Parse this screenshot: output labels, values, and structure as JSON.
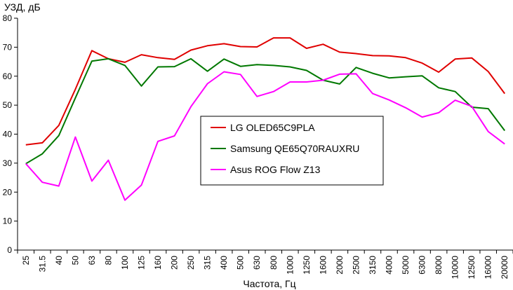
{
  "chart_data": {
    "type": "line",
    "title": "",
    "ylabel": "УЗД, дБ",
    "xlabel": "Частота, Гц",
    "ylim": [
      0,
      80
    ],
    "yticks": [
      0,
      10,
      20,
      30,
      40,
      50,
      60,
      70,
      80
    ],
    "grid": false,
    "legend_position": "center",
    "categories": [
      "25",
      "31.5",
      "40",
      "50",
      "63",
      "80",
      "100",
      "125",
      "160",
      "200",
      "250",
      "315",
      "400",
      "500",
      "630",
      "800",
      "1000",
      "1250",
      "1600",
      "2000",
      "2500",
      "3150",
      "4000",
      "5000",
      "6300",
      "8000",
      "10000",
      "12500",
      "16000",
      "20000"
    ],
    "series": [
      {
        "name": "LG OLED65C9PLA",
        "color": "#e00000",
        "values": [
          36.3,
          37.0,
          43.0,
          55.5,
          68.8,
          66.0,
          64.8,
          67.4,
          66.4,
          65.8,
          69.0,
          70.5,
          71.2,
          70.2,
          70.1,
          73.2,
          73.2,
          69.6,
          71.0,
          68.3,
          67.8,
          67.1,
          67.0,
          66.4,
          64.5,
          61.4,
          65.9,
          66.3,
          61.6,
          54.0
        ]
      },
      {
        "name": "Samsung QE65Q70RAUXRU",
        "color": "#007800",
        "values": [
          29.8,
          33.2,
          39.5,
          52.5,
          65.2,
          66.0,
          63.7,
          56.6,
          63.2,
          63.3,
          66.0,
          61.7,
          65.9,
          63.4,
          64.0,
          63.7,
          63.2,
          62.0,
          58.6,
          57.3,
          63.0,
          61.0,
          59.4,
          59.8,
          60.1,
          56.0,
          54.7,
          49.3,
          48.8,
          41.2
        ]
      },
      {
        "name": "Asus ROG Flow Z13",
        "color": "#ff00ff",
        "values": [
          29.8,
          23.4,
          22.1,
          39.0,
          23.8,
          31.0,
          17.2,
          22.4,
          37.5,
          39.4,
          49.5,
          57.4,
          61.5,
          60.6,
          53.0,
          54.7,
          58.0,
          58.0,
          58.6,
          60.7,
          60.8,
          54.0,
          51.8,
          49.1,
          45.9,
          47.4,
          51.7,
          49.6,
          40.9,
          36.6
        ]
      }
    ]
  }
}
